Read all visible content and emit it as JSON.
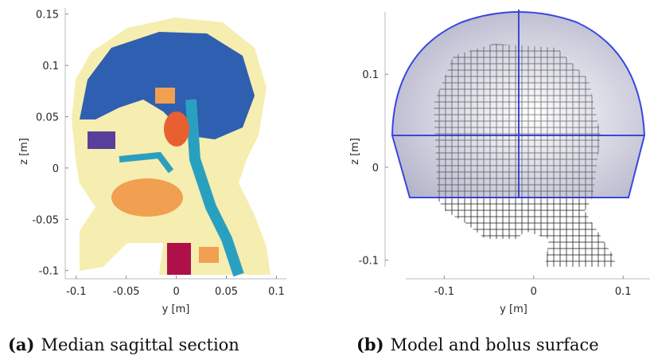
{
  "figure": {
    "panels": [
      {
        "xlabel": "y [m]",
        "ylabel": "z [m]",
        "xlim": [
          -0.111,
          0.11
        ],
        "ylim": [
          -0.108,
          0.156
        ],
        "xticks": [
          -0.1,
          -0.05,
          0,
          0.05,
          0.1
        ],
        "yticks": [
          -0.1,
          -0.05,
          0,
          0.05,
          0.1,
          0.15
        ],
        "caption_label": "(a)",
        "caption_text": "Median sagittal section"
      },
      {
        "xlabel": "y [m]",
        "ylabel": "z [m]",
        "xlim": [
          -0.143,
          0.13
        ],
        "ylim": [
          -0.12,
          0.167
        ],
        "xticks": [
          -0.1,
          0,
          0.1
        ],
        "yticks": [
          -0.1,
          0,
          0.1
        ],
        "caption_label": "(b)",
        "caption_text": "Model and bolus surface"
      }
    ]
  }
}
